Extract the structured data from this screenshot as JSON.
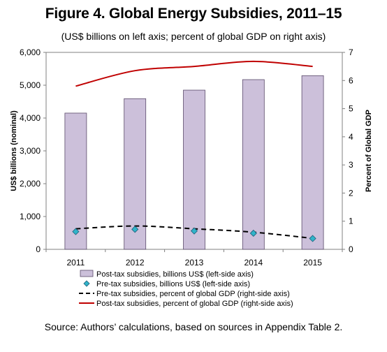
{
  "title": "Figure 4. Global Energy Subsidies, 2011–15",
  "subtitle": "(US$ billions on left axis; percent of global GDP on right axis)",
  "source": "Source: Authors’ calculations, based on sources in Appendix Table 2.",
  "chart_data": {
    "type": "bar",
    "categories": [
      "2011",
      "2012",
      "2013",
      "2014",
      "2015"
    ],
    "ylabel": "US$ billions (nominal)",
    "y2label": "Percent of Global GDP",
    "ylim": [
      0,
      6000
    ],
    "y2lim": [
      0,
      7
    ],
    "yticks": [
      "0",
      "1,000",
      "2,000",
      "3,000",
      "4,000",
      "5,000",
      "6,000"
    ],
    "y2ticks": [
      "0",
      "1",
      "2",
      "3",
      "4",
      "5",
      "6",
      "7"
    ],
    "series": [
      {
        "name": "Post-tax subsidies, billions US$ (left-side axis)",
        "type": "bar",
        "axis": "left",
        "color": "#ccc0da",
        "values": [
          4150,
          4590,
          4850,
          5170,
          5290
        ]
      },
      {
        "name": "Pre-tax subsidies, billions US$ (left-side axis)",
        "type": "scatter",
        "axis": "left",
        "color": "#31b4c9",
        "values": [
          540,
          610,
          560,
          490,
          330
        ]
      },
      {
        "name": "Pre-tax subsidies, percent of global GDP (right-side axis)",
        "type": "line",
        "axis": "right",
        "style": "dashed",
        "color": "#000000",
        "values": [
          0.73,
          0.83,
          0.73,
          0.61,
          0.39
        ]
      },
      {
        "name": "Post-tax subsidies, percent of global GDP (right-side axis)",
        "type": "line",
        "axis": "right",
        "style": "solid",
        "color": "#c00000",
        "values": [
          5.8,
          6.35,
          6.5,
          6.68,
          6.5
        ]
      }
    ],
    "grid": false,
    "legend_position": "bottom"
  }
}
